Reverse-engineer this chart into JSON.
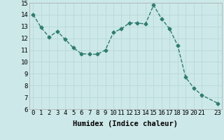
{
  "x": [
    0,
    1,
    2,
    3,
    4,
    5,
    6,
    7,
    8,
    9,
    10,
    11,
    12,
    13,
    14,
    15,
    16,
    17,
    18,
    19,
    20,
    21,
    23
  ],
  "y": [
    14.0,
    12.9,
    12.1,
    12.6,
    11.9,
    11.2,
    10.7,
    10.65,
    10.65,
    11.0,
    12.5,
    12.8,
    13.3,
    13.3,
    13.2,
    14.8,
    13.65,
    12.8,
    11.4,
    8.7,
    7.8,
    7.2,
    6.5
  ],
  "xlabel": "Humidex (Indice chaleur)",
  "xlim": [
    -0.5,
    23.5
  ],
  "ylim": [
    6,
    15
  ],
  "yticks": [
    6,
    7,
    8,
    9,
    10,
    11,
    12,
    13,
    14,
    15
  ],
  "xticks": [
    0,
    1,
    2,
    3,
    4,
    5,
    6,
    7,
    8,
    9,
    10,
    11,
    12,
    13,
    14,
    15,
    16,
    17,
    18,
    19,
    20,
    21,
    23
  ],
  "xtick_labels": [
    "0",
    "1",
    "2",
    "3",
    "4",
    "5",
    "6",
    "7",
    "8",
    "9",
    "10",
    "11",
    "12",
    "13",
    "14",
    "15",
    "16",
    "17",
    "18",
    "19",
    "20",
    "21",
    "23"
  ],
  "line_color": "#2e7d6e",
  "marker": "D",
  "marker_size": 2.5,
  "bg_color": "#cce8e8",
  "grid_color": "#b8d8d8",
  "label_fontsize": 7.5,
  "tick_fontsize": 6.5,
  "line_width": 1.0
}
